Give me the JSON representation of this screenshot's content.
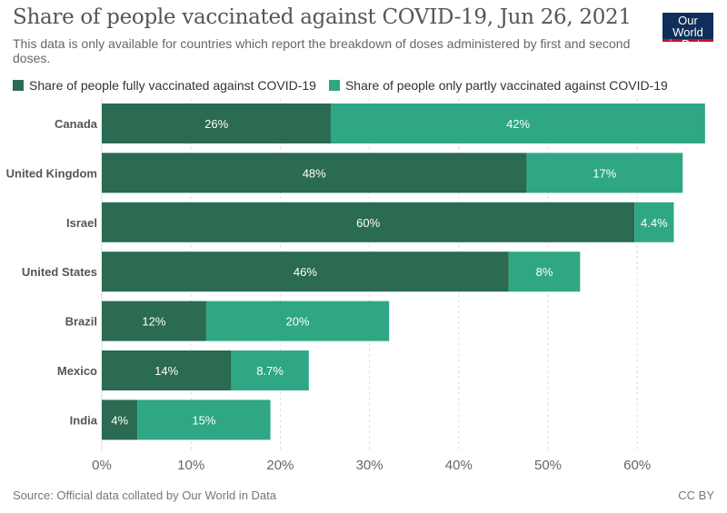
{
  "logo": {
    "line1": "Our World",
    "line2": "in Data"
  },
  "footer": {
    "source": "Source: Official data collated by Our World in Data",
    "license": "CC BY"
  },
  "chart_data": {
    "type": "bar",
    "orientation": "horizontal",
    "stacked": true,
    "title": "Share of people vaccinated against COVID-19, Jun 26, 2021",
    "subtitle": "This data is only available for countries which report the breakdown of doses administered by first and second doses.",
    "categories": [
      "Canada",
      "United Kingdom",
      "Israel",
      "United States",
      "Brazil",
      "Mexico",
      "India"
    ],
    "series": [
      {
        "name": "Share of people fully vaccinated against COVID-19",
        "color": "#2a6b52",
        "values": [
          25.7,
          47.6,
          59.7,
          45.6,
          11.7,
          14.5,
          4.0
        ],
        "labels": [
          "26%",
          "48%",
          "60%",
          "46%",
          "12%",
          "14%",
          "4%"
        ]
      },
      {
        "name": "Share of people only partly vaccinated against COVID-19",
        "color": "#2fa784",
        "values": [
          41.9,
          17.5,
          4.4,
          8.0,
          20.5,
          8.7,
          14.9
        ],
        "labels": [
          "42%",
          "17%",
          "4.4%",
          "8%",
          "20%",
          "8.7%",
          "15%"
        ]
      }
    ],
    "xlim": [
      0,
      67
    ],
    "xticks": [
      0,
      10,
      20,
      30,
      40,
      50,
      60
    ],
    "xtick_labels": [
      "0%",
      "10%",
      "20%",
      "30%",
      "40%",
      "50%",
      "60%"
    ],
    "xlabel": "",
    "ylabel": "",
    "grid": "vertical dashed",
    "legend_position": "top"
  }
}
